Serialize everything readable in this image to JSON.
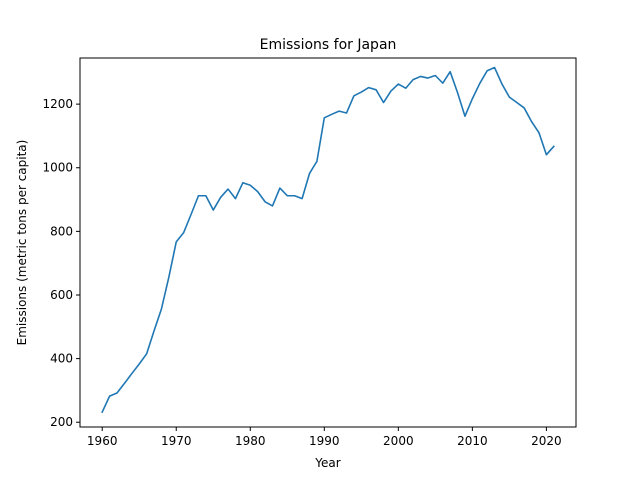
{
  "chart_data": {
    "type": "line",
    "title": "Emissions for Japan",
    "xlabel": "Year",
    "ylabel": "Emissions (metric tons per capita)",
    "xlim": [
      1957,
      2024
    ],
    "ylim": [
      185,
      1345
    ],
    "xticks": [
      1960,
      1970,
      1980,
      1990,
      2000,
      2010,
      2020
    ],
    "yticks": [
      200,
      400,
      600,
      800,
      1000,
      1200
    ],
    "grid": false,
    "series": [
      {
        "color": "#1f77b4",
        "x": [
          1960,
          1961,
          1962,
          1963,
          1964,
          1965,
          1966,
          1967,
          1968,
          1969,
          1970,
          1971,
          1972,
          1973,
          1974,
          1975,
          1976,
          1977,
          1978,
          1979,
          1980,
          1981,
          1982,
          1983,
          1984,
          1985,
          1986,
          1987,
          1988,
          1989,
          1990,
          1991,
          1992,
          1993,
          1994,
          1995,
          1996,
          1997,
          1998,
          1999,
          2000,
          2001,
          2002,
          2003,
          2004,
          2005,
          2006,
          2007,
          2008,
          2009,
          2010,
          2011,
          2012,
          2013,
          2014,
          2015,
          2016,
          2017,
          2018,
          2019,
          2020,
          2021
        ],
        "y": [
          232,
          282,
          292,
          322,
          353,
          383,
          415,
          487,
          556,
          656,
          767,
          796,
          853,
          912,
          912,
          867,
          907,
          933,
          903,
          953,
          945,
          925,
          893,
          880,
          936,
          912,
          912,
          903,
          982,
          1020,
          1157,
          1168,
          1178,
          1172,
          1226,
          1238,
          1252,
          1245,
          1205,
          1241,
          1263,
          1250,
          1277,
          1287,
          1282,
          1290,
          1266,
          1302,
          1236,
          1162,
          1217,
          1265,
          1305,
          1315,
          1263,
          1222,
          1205,
          1188,
          1145,
          1110,
          1041,
          1067
        ]
      }
    ]
  }
}
